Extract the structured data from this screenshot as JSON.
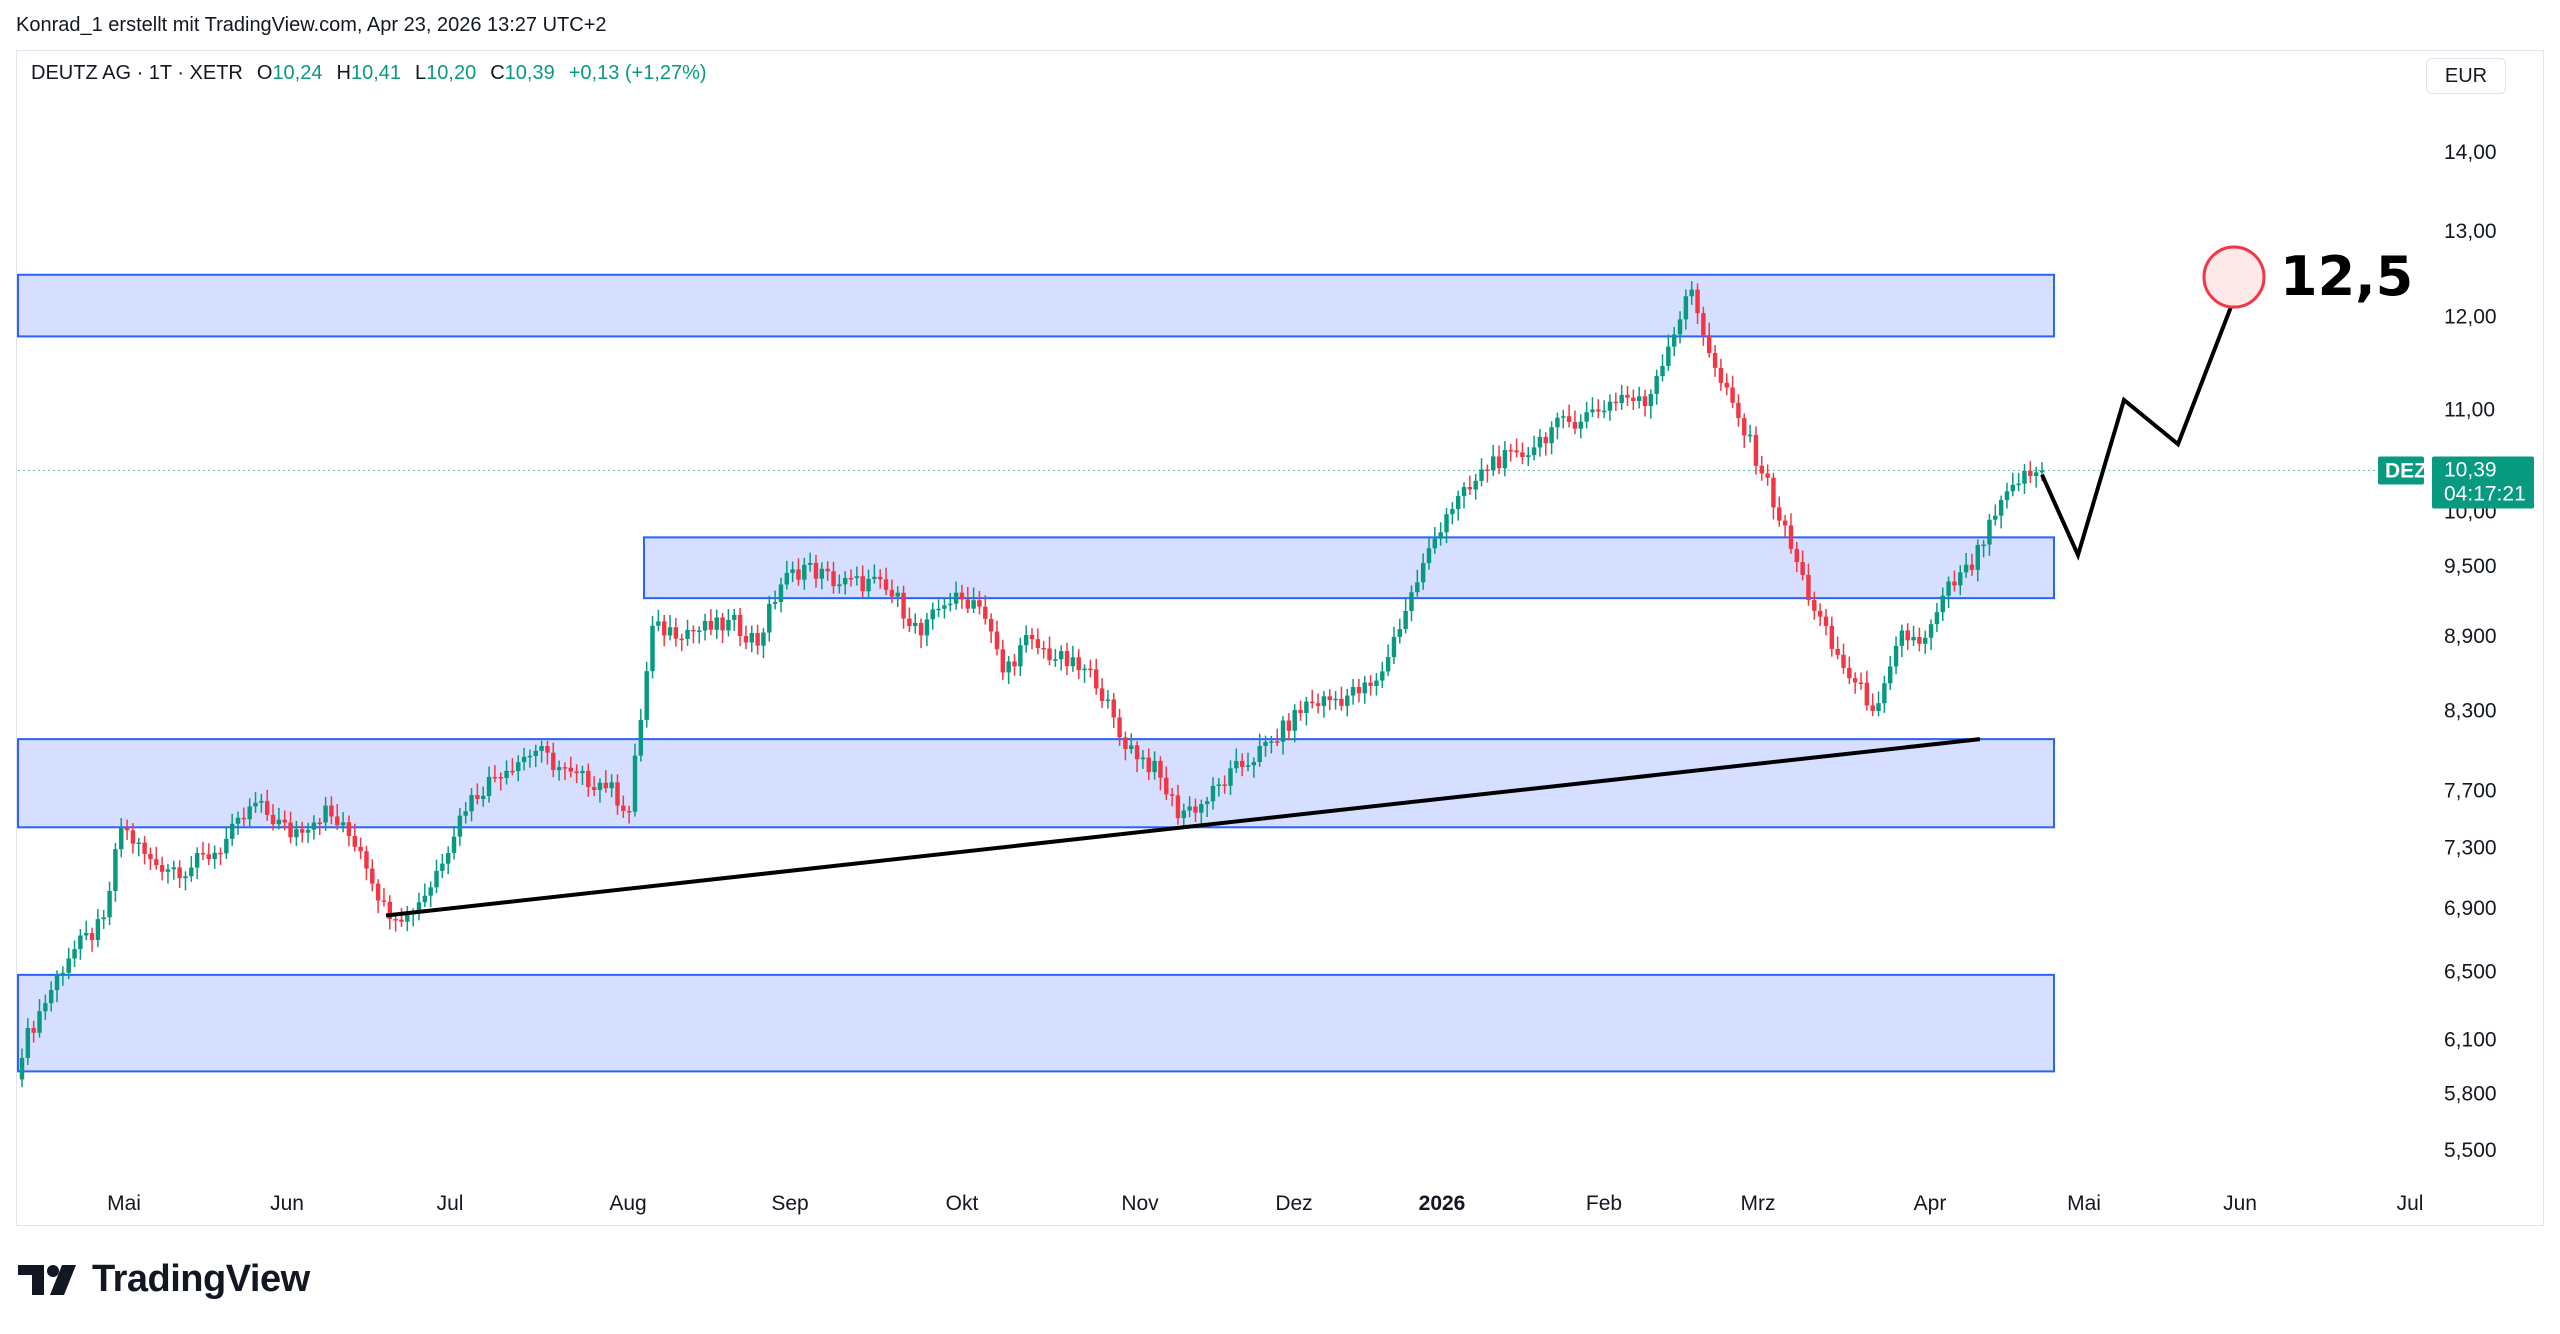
{
  "header": {
    "credit": "Konrad_1 erstellt mit TradingView.com, Apr 23, 2026 13:27 UTC+2"
  },
  "legend": {
    "symbol": "DEUTZ AG · 1T · XETR",
    "o_label": "O",
    "o_value": "10,24",
    "h_label": "H",
    "h_value": "10,41",
    "l_label": "L",
    "l_value": "10,20",
    "c_label": "C",
    "c_value": "10,39",
    "change": "+0,13 (+1,27%)"
  },
  "currency": "EUR",
  "price_tag": {
    "ticker": "DEZ",
    "price": "10,39",
    "countdown": "04:17:21"
  },
  "target_label": "12,5",
  "brand": "TradingView",
  "colors": {
    "up": "#089981",
    "down": "#f23645",
    "zone_fill": "#d1dcff",
    "zone_border": "#2962ff",
    "trendline": "#000000",
    "target_circle": "#f23645"
  },
  "chart_data": {
    "type": "candlestick",
    "y_scale": "log",
    "ylim": [
      5.2,
      15.0
    ],
    "y_ticks": [
      "14,00",
      "13,00",
      "12,00",
      "11,00",
      "10,00",
      "9,500",
      "8,900",
      "8,300",
      "7,700",
      "7,300",
      "6,900",
      "6,500",
      "6,100",
      "5,800",
      "5,500"
    ],
    "y_tick_values": [
      14.0,
      13.0,
      12.0,
      11.0,
      10.0,
      9.5,
      8.9,
      8.3,
      7.7,
      7.3,
      6.9,
      6.5,
      6.1,
      5.8,
      5.5
    ],
    "x_ticks": [
      {
        "label": "Mai",
        "bold": false
      },
      {
        "label": "Jun",
        "bold": false
      },
      {
        "label": "Jul",
        "bold": false
      },
      {
        "label": "Aug",
        "bold": false
      },
      {
        "label": "Sep",
        "bold": false
      },
      {
        "label": "Okt",
        "bold": false
      },
      {
        "label": "Nov",
        "bold": false
      },
      {
        "label": "Dez",
        "bold": false
      },
      {
        "label": "2026",
        "bold": true
      },
      {
        "label": "Feb",
        "bold": false
      },
      {
        "label": "Mrz",
        "bold": false
      },
      {
        "label": "Apr",
        "bold": false
      },
      {
        "label": "Mai",
        "bold": false
      },
      {
        "label": "Jun",
        "bold": false
      },
      {
        "label": "Jul",
        "bold": false
      }
    ],
    "zones": [
      {
        "low": 11.78,
        "high": 12.48
      },
      {
        "low": 9.22,
        "high": 9.76
      },
      {
        "low": 7.44,
        "high": 8.08
      },
      {
        "low": 5.92,
        "high": 6.48
      }
    ],
    "last_price": 10.39,
    "projection_prices": [
      10.35,
      9.6,
      11.1,
      10.65,
      12.2
    ],
    "target": 12.5,
    "trendline": {
      "start_price": 6.85,
      "end_price": 8.08
    },
    "candle_keyframes": [
      [
        0,
        6.05
      ],
      [
        8,
        6.6
      ],
      [
        14,
        6.8
      ],
      [
        17,
        7.45
      ],
      [
        22,
        7.2
      ],
      [
        28,
        7.15
      ],
      [
        34,
        7.3
      ],
      [
        40,
        7.6
      ],
      [
        46,
        7.4
      ],
      [
        52,
        7.55
      ],
      [
        58,
        7.3
      ],
      [
        62,
        6.9
      ],
      [
        66,
        6.85
      ],
      [
        70,
        7.05
      ],
      [
        76,
        7.6
      ],
      [
        82,
        7.85
      ],
      [
        88,
        8.0
      ],
      [
        94,
        7.8
      ],
      [
        100,
        7.75
      ],
      [
        104,
        7.55
      ],
      [
        108,
        8.95
      ],
      [
        116,
        8.95
      ],
      [
        122,
        9.0
      ],
      [
        126,
        8.85
      ],
      [
        130,
        9.35
      ],
      [
        134,
        9.5
      ],
      [
        140,
        9.35
      ],
      [
        146,
        9.35
      ],
      [
        150,
        9.2
      ],
      [
        154,
        8.9
      ],
      [
        158,
        9.2
      ],
      [
        164,
        9.2
      ],
      [
        168,
        8.6
      ],
      [
        172,
        8.85
      ],
      [
        178,
        8.7
      ],
      [
        184,
        8.55
      ],
      [
        188,
        8.1
      ],
      [
        194,
        7.85
      ],
      [
        198,
        7.55
      ],
      [
        202,
        7.6
      ],
      [
        208,
        7.85
      ],
      [
        214,
        8.05
      ],
      [
        220,
        8.35
      ],
      [
        226,
        8.4
      ],
      [
        232,
        8.5
      ],
      [
        236,
        9.0
      ],
      [
        240,
        9.5
      ],
      [
        244,
        10.0
      ],
      [
        248,
        10.2
      ],
      [
        252,
        10.5
      ],
      [
        256,
        10.5
      ],
      [
        262,
        10.8
      ],
      [
        266,
        10.9
      ],
      [
        270,
        11.0
      ],
      [
        274,
        11.15
      ],
      [
        278,
        11.05
      ],
      [
        282,
        11.7
      ],
      [
        286,
        12.3
      ],
      [
        290,
        11.4
      ],
      [
        294,
        10.9
      ],
      [
        298,
        10.4
      ],
      [
        302,
        9.8
      ],
      [
        306,
        9.25
      ],
      [
        310,
        8.8
      ],
      [
        314,
        8.5
      ],
      [
        318,
        8.3
      ],
      [
        322,
        8.9
      ],
      [
        326,
        8.85
      ],
      [
        330,
        9.3
      ],
      [
        334,
        9.5
      ],
      [
        338,
        9.95
      ],
      [
        342,
        10.3
      ],
      [
        346,
        10.39
      ]
    ]
  }
}
